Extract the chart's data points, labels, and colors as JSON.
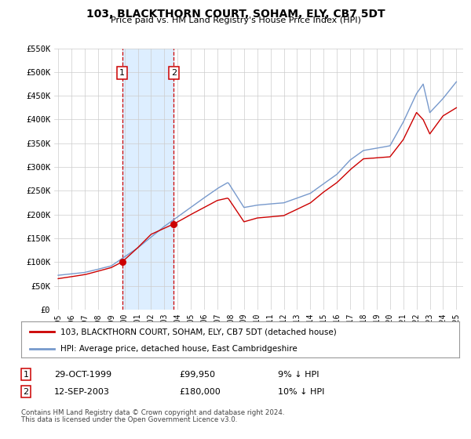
{
  "title": "103, BLACKTHORN COURT, SOHAM, ELY, CB7 5DT",
  "subtitle": "Price paid vs. HM Land Registry's House Price Index (HPI)",
  "ylim": [
    0,
    550000
  ],
  "xlim_start": 1994.7,
  "xlim_end": 2025.5,
  "yticks": [
    0,
    50000,
    100000,
    150000,
    200000,
    250000,
    300000,
    350000,
    400000,
    450000,
    500000,
    550000
  ],
  "ytick_labels": [
    "£0",
    "£50K",
    "£100K",
    "£150K",
    "£200K",
    "£250K",
    "£300K",
    "£350K",
    "£400K",
    "£450K",
    "£500K",
    "£550K"
  ],
  "xticks": [
    1995,
    1996,
    1997,
    1998,
    1999,
    2000,
    2001,
    2002,
    2003,
    2004,
    2005,
    2006,
    2007,
    2008,
    2009,
    2010,
    2011,
    2012,
    2013,
    2014,
    2015,
    2016,
    2017,
    2018,
    2019,
    2020,
    2021,
    2022,
    2023,
    2024,
    2025
  ],
  "sale1_x": 1999.83,
  "sale1_y": 99950,
  "sale1_label": "1",
  "sale1_date": "29-OCT-1999",
  "sale1_price": "£99,950",
  "sale1_hpi": "9% ↓ HPI",
  "sale2_x": 2003.71,
  "sale2_y": 180000,
  "sale2_label": "2",
  "sale2_date": "12-SEP-2003",
  "sale2_price": "£180,000",
  "sale2_hpi": "10% ↓ HPI",
  "red_color": "#cc0000",
  "blue_color": "#7799cc",
  "shading_color": "#ddeeff",
  "background_color": "#ffffff",
  "grid_color": "#cccccc",
  "legend_line1": "103, BLACKTHORN COURT, SOHAM, ELY, CB7 5DT (detached house)",
  "legend_line2": "HPI: Average price, detached house, East Cambridgeshire",
  "footer1": "Contains HM Land Registry data © Crown copyright and database right 2024.",
  "footer2": "This data is licensed under the Open Government Licence v3.0."
}
